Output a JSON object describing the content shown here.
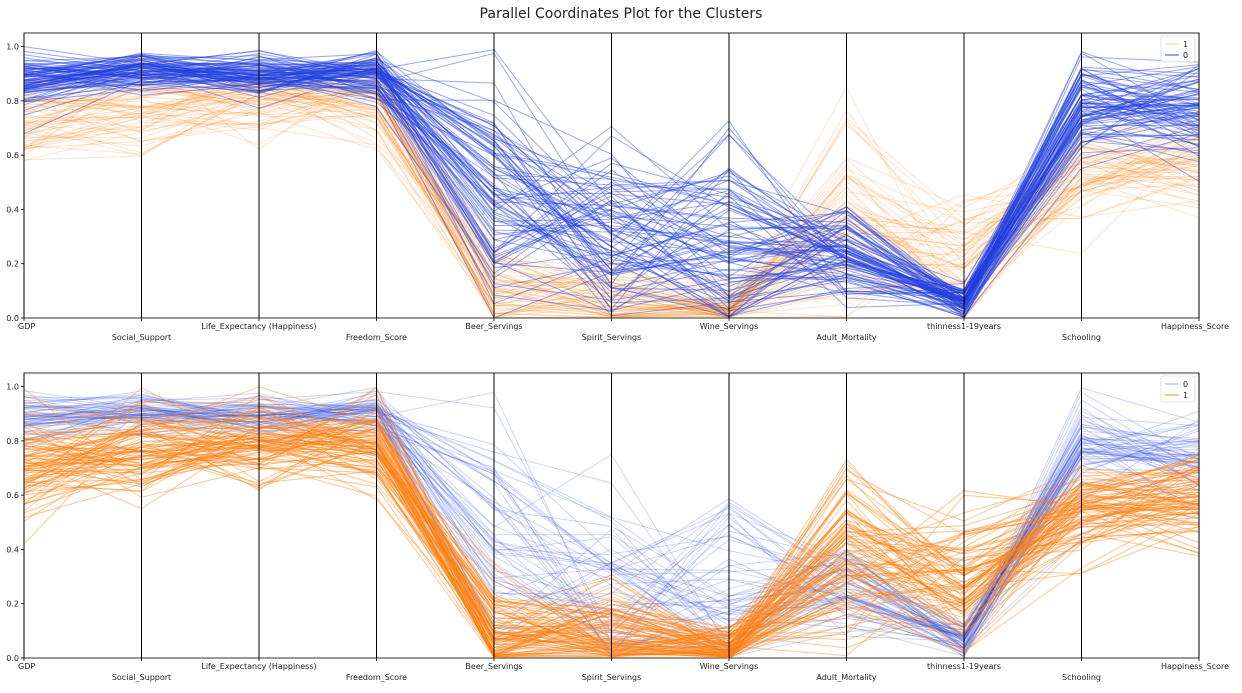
{
  "title": "Parallel Coordinates Plot for the Clusters",
  "colors": {
    "cluster_0": "#1f3fe0",
    "cluster_1": "#ff7f0e"
  },
  "chart_data": [
    {
      "type": "parallel-coordinates",
      "axes": [
        "GDP",
        "Social_Support",
        "Life_Expectancy (Happiness)",
        "Freedom_Score",
        "Beer_Servings",
        "Spirit_Servings",
        "Wine_Servings",
        "Adult_Mortality",
        "thinness1-19years",
        "Schooling",
        "Happiness_Score"
      ],
      "ylim": [
        0,
        1.05
      ],
      "yticks": [
        "0.0",
        "0.2",
        "0.4",
        "0.6",
        "0.8",
        "1.0"
      ],
      "legend": {
        "position": "top-right",
        "entries": [
          "1",
          "0"
        ]
      },
      "emphasis": "0",
      "series": [
        {
          "name": "1",
          "color": "#ff7f0e",
          "mean": [
            0.72,
            0.76,
            0.8,
            0.79,
            0.08,
            0.06,
            0.03,
            0.36,
            0.25,
            0.55,
            0.58
          ],
          "spread": [
            0.1,
            0.09,
            0.07,
            0.08,
            0.09,
            0.09,
            0.04,
            0.18,
            0.14,
            0.09,
            0.08
          ]
        },
        {
          "name": "0",
          "color": "#1f3fe0",
          "mean": [
            0.88,
            0.91,
            0.89,
            0.9,
            0.45,
            0.28,
            0.25,
            0.24,
            0.06,
            0.78,
            0.76
          ],
          "spread": [
            0.05,
            0.04,
            0.04,
            0.05,
            0.22,
            0.18,
            0.2,
            0.09,
            0.03,
            0.09,
            0.09
          ]
        }
      ]
    },
    {
      "type": "parallel-coordinates",
      "axes": [
        "GDP",
        "Social_Support",
        "Life_Expectancy (Happiness)",
        "Freedom_Score",
        "Beer_Servings",
        "Spirit_Servings",
        "Wine_Servings",
        "Adult_Mortality",
        "thinness1-19years",
        "Schooling",
        "Happiness_Score"
      ],
      "ylim": [
        0,
        1.05
      ],
      "yticks": [
        "0.0",
        "0.2",
        "0.4",
        "0.6",
        "0.8",
        "1.0"
      ],
      "legend": {
        "position": "top-right",
        "entries": [
          "0",
          "1"
        ]
      },
      "emphasis": "1",
      "series": [
        {
          "name": "0",
          "color": "#1f3fe0",
          "mean": [
            0.88,
            0.91,
            0.89,
            0.9,
            0.45,
            0.28,
            0.25,
            0.24,
            0.06,
            0.78,
            0.76
          ],
          "spread": [
            0.05,
            0.04,
            0.04,
            0.05,
            0.22,
            0.18,
            0.2,
            0.09,
            0.03,
            0.09,
            0.09
          ]
        },
        {
          "name": "1",
          "color": "#ff7f0e",
          "mean": [
            0.72,
            0.76,
            0.8,
            0.79,
            0.08,
            0.06,
            0.03,
            0.36,
            0.25,
            0.55,
            0.58
          ],
          "spread": [
            0.1,
            0.09,
            0.07,
            0.08,
            0.09,
            0.09,
            0.04,
            0.18,
            0.14,
            0.09,
            0.08
          ]
        }
      ]
    }
  ]
}
